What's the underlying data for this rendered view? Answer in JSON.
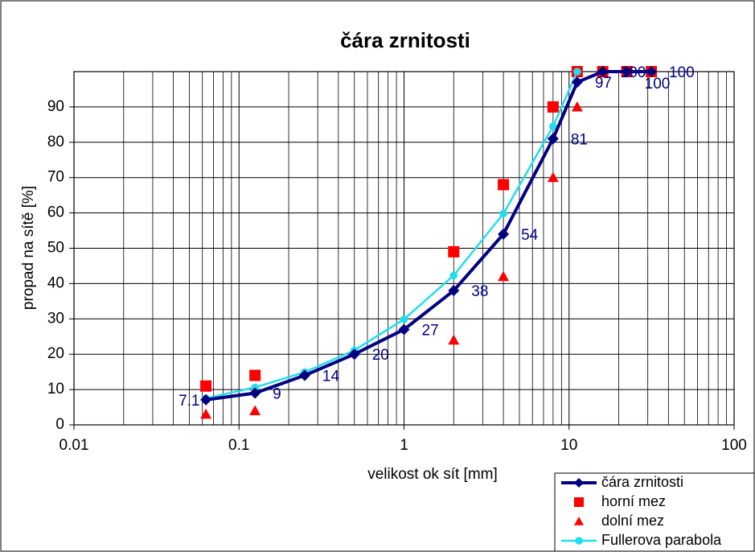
{
  "chart_data": {
    "type": "line",
    "title": "čára zrnitosti",
    "xlabel": "velikost ok sít [mm]",
    "ylabel": "propad na sítě [%]",
    "log_x": true,
    "xlim": [
      0.01,
      100
    ],
    "xticks": [
      0.01,
      0.1,
      1,
      10,
      100
    ],
    "ylim": [
      0,
      100
    ],
    "yticks": [
      0,
      10,
      20,
      30,
      40,
      50,
      60,
      70,
      80,
      90
    ],
    "grid": true,
    "legend": "lower right",
    "series": [
      {
        "name": "čára zrnitosti",
        "color": "#000080",
        "marker": "diamond",
        "line": true,
        "data_labels": true,
        "x": [
          0.063,
          0.125,
          0.25,
          0.5,
          1,
          2,
          4,
          8,
          11.2,
          16,
          22.4,
          31.5
        ],
        "values": [
          7.1,
          9,
          14,
          20,
          27,
          38,
          54,
          81,
          97,
          100,
          100,
          100
        ]
      },
      {
        "name": "horní mez",
        "color": "#ff0000",
        "marker": "square",
        "line": false,
        "x": [
          0.063,
          0.125,
          2,
          4,
          8,
          11.2,
          16,
          22.4,
          31.5
        ],
        "values": [
          11,
          14,
          49,
          68,
          90,
          100,
          100,
          100,
          100
        ]
      },
      {
        "name": "dolní mez",
        "color": "#ff0000",
        "marker": "triangle",
        "line": false,
        "x": [
          0.063,
          0.125,
          2,
          4,
          8,
          11.2
        ],
        "values": [
          3,
          4,
          24,
          42,
          70,
          90
        ]
      },
      {
        "name": "Fullerova parabola",
        "color": "#22ddee",
        "marker": "circle",
        "line": true,
        "x": [
          0.063,
          0.125,
          0.25,
          0.5,
          1,
          2,
          4,
          8,
          11.2
        ],
        "values": [
          7.5,
          10.6,
          14.9,
          21.1,
          29.9,
          42.3,
          59.8,
          84.5,
          100
        ]
      }
    ]
  }
}
